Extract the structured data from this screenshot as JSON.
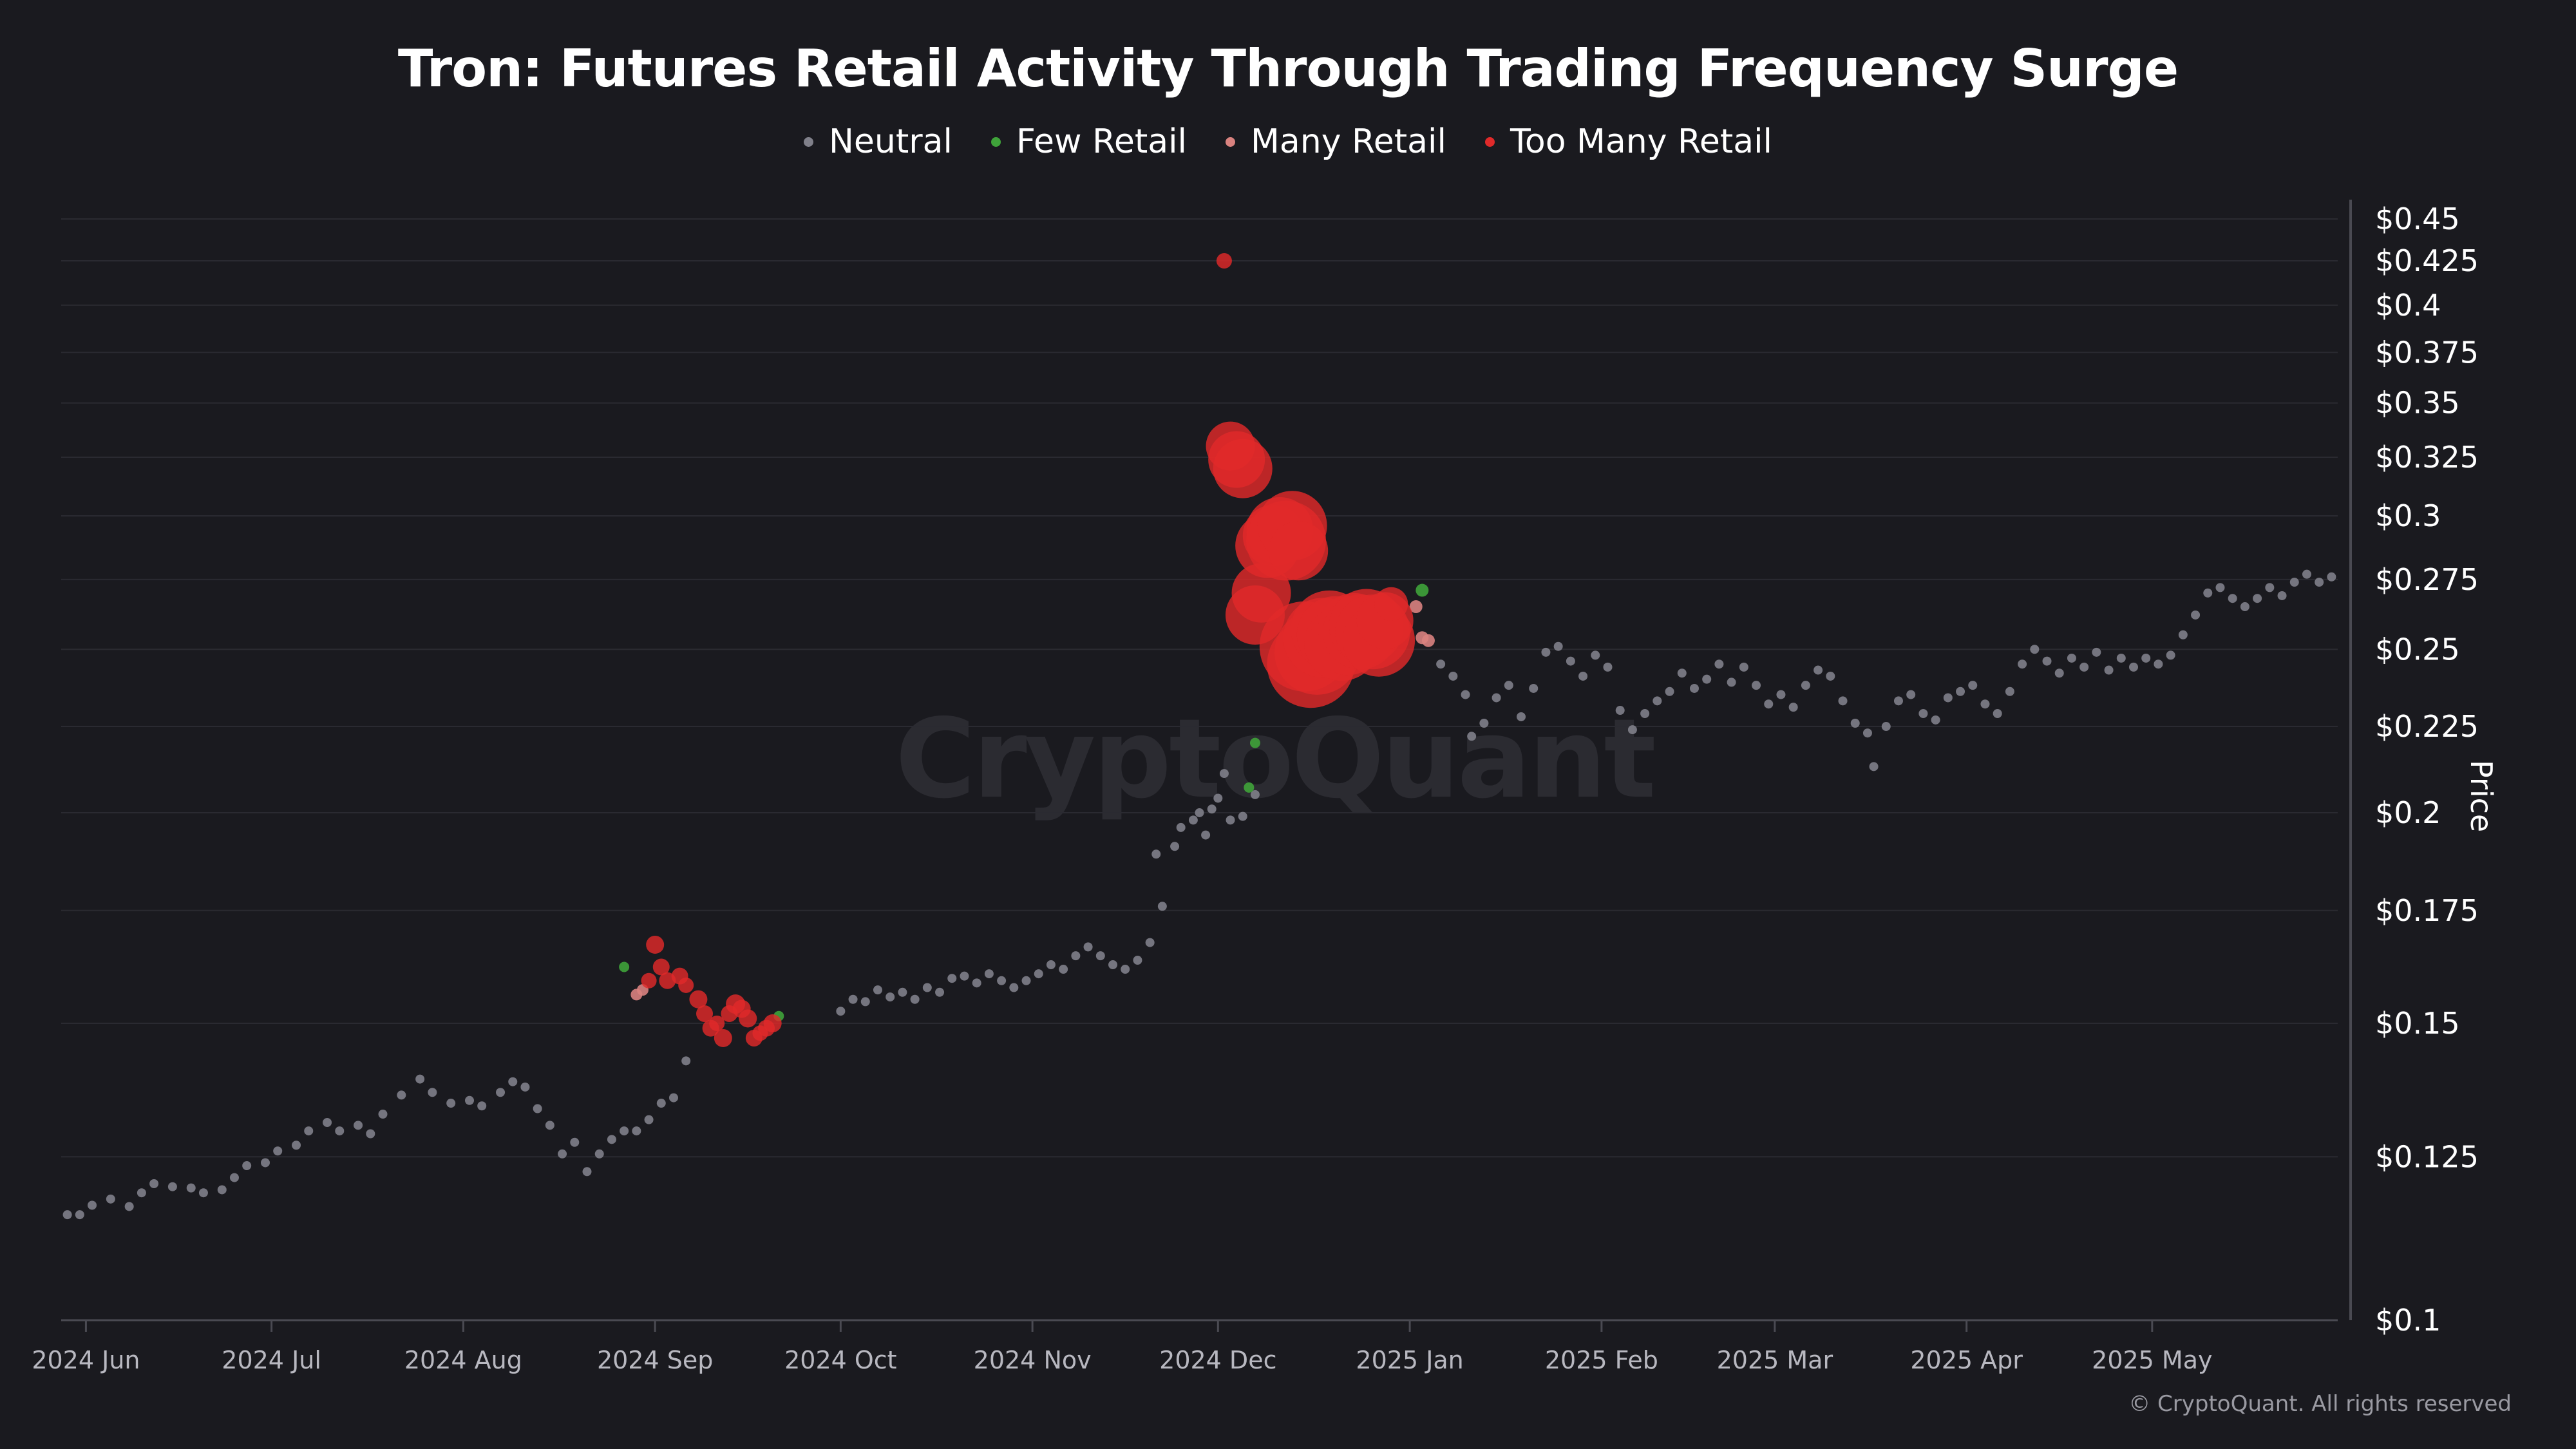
{
  "title": "Tron: Futures Retail Activity Through Trading Frequency Surge",
  "legend": [
    {
      "label": "Neutral",
      "color": "#80808a"
    },
    {
      "label": "Few Retail",
      "color": "#3fa33a"
    },
    {
      "label": "Many Retail",
      "color": "#d9827f"
    },
    {
      "label": "Too Many Retail",
      "color": "#e02a2a"
    }
  ],
  "watermark": "CryptoQuant",
  "copyright": "© CryptoQuant. All rights reserved",
  "chart_data": {
    "type": "scatter",
    "title": "Tron: Futures Retail Activity Through Trading Frequency Surge",
    "xlabel": "",
    "ylabel": "Price",
    "y_scale": "log",
    "ylim": [
      0.1,
      0.45
    ],
    "xlim": [
      "2024-05-28",
      "2025-05-31"
    ],
    "y_ticks": [
      {
        "value": 0.1,
        "label": "$0.1"
      },
      {
        "value": 0.125,
        "label": "$0.125"
      },
      {
        "value": 0.15,
        "label": "$0.15"
      },
      {
        "value": 0.175,
        "label": "$0.175"
      },
      {
        "value": 0.2,
        "label": "$0.2"
      },
      {
        "value": 0.225,
        "label": "$0.225"
      },
      {
        "value": 0.25,
        "label": "$0.25"
      },
      {
        "value": 0.275,
        "label": "$0.275"
      },
      {
        "value": 0.3,
        "label": "$0.3"
      },
      {
        "value": 0.325,
        "label": "$0.325"
      },
      {
        "value": 0.35,
        "label": "$0.35"
      },
      {
        "value": 0.375,
        "label": "$0.375"
      },
      {
        "value": 0.4,
        "label": "$0.4"
      },
      {
        "value": 0.425,
        "label": "$0.425"
      },
      {
        "value": 0.45,
        "label": "$0.45"
      }
    ],
    "x_ticks": [
      {
        "date": "2024-06-01",
        "label": "2024 Jun"
      },
      {
        "date": "2024-07-01",
        "label": "2024 Jul"
      },
      {
        "date": "2024-08-01",
        "label": "2024 Aug"
      },
      {
        "date": "2024-09-01",
        "label": "2024 Sep"
      },
      {
        "date": "2024-10-01",
        "label": "2024 Oct"
      },
      {
        "date": "2024-11-01",
        "label": "2024 Nov"
      },
      {
        "date": "2024-12-01",
        "label": "2024 Dec"
      },
      {
        "date": "2025-01-01",
        "label": "2025 Jan"
      },
      {
        "date": "2025-02-01",
        "label": "2025 Feb"
      },
      {
        "date": "2025-03-01",
        "label": "2025 Mar"
      },
      {
        "date": "2025-04-01",
        "label": "2025 Apr"
      },
      {
        "date": "2025-05-01",
        "label": "2025 May"
      }
    ],
    "grid": true,
    "legend_position": "top-center",
    "series": [
      {
        "name": "Neutral",
        "color": "#80808a",
        "points": [
          [
            "2024-05-29",
            0.1155
          ],
          [
            "2024-05-31",
            0.1155
          ],
          [
            "2024-06-02",
            0.117
          ],
          [
            "2024-06-05",
            0.118
          ],
          [
            "2024-06-08",
            0.1168
          ],
          [
            "2024-06-10",
            0.119
          ],
          [
            "2024-06-12",
            0.1205
          ],
          [
            "2024-06-15",
            0.12
          ],
          [
            "2024-06-18",
            0.1198
          ],
          [
            "2024-06-20",
            0.119
          ],
          [
            "2024-06-23",
            0.1195
          ],
          [
            "2024-06-25",
            0.1215
          ],
          [
            "2024-06-27",
            0.1235
          ],
          [
            "2024-06-30",
            0.124
          ],
          [
            "2024-07-02",
            0.126
          ],
          [
            "2024-07-05",
            0.127
          ],
          [
            "2024-07-07",
            0.1295
          ],
          [
            "2024-07-10",
            0.131
          ],
          [
            "2024-07-12",
            0.1295
          ],
          [
            "2024-07-15",
            0.1305
          ],
          [
            "2024-07-17",
            0.129
          ],
          [
            "2024-07-19",
            0.1325
          ],
          [
            "2024-07-22",
            0.136
          ],
          [
            "2024-07-25",
            0.139
          ],
          [
            "2024-07-27",
            0.1365
          ],
          [
            "2024-07-30",
            0.1345
          ],
          [
            "2024-08-02",
            0.135
          ],
          [
            "2024-08-04",
            0.134
          ],
          [
            "2024-08-07",
            0.1365
          ],
          [
            "2024-08-09",
            0.1385
          ],
          [
            "2024-08-11",
            0.1375
          ],
          [
            "2024-08-13",
            0.1335
          ],
          [
            "2024-08-15",
            0.1305
          ],
          [
            "2024-08-17",
            0.1255
          ],
          [
            "2024-08-19",
            0.1275
          ],
          [
            "2024-08-21",
            0.1225
          ],
          [
            "2024-08-23",
            0.1255
          ],
          [
            "2024-08-25",
            0.128
          ],
          [
            "2024-08-27",
            0.1295
          ],
          [
            "2024-08-29",
            0.1295
          ],
          [
            "2024-08-31",
            0.1315
          ],
          [
            "2024-09-02",
            0.1345
          ],
          [
            "2024-09-04",
            0.1355
          ],
          [
            "2024-09-06",
            0.1425
          ],
          [
            "2024-10-01",
            0.1525
          ],
          [
            "2024-10-03",
            0.155
          ],
          [
            "2024-10-05",
            0.1545
          ],
          [
            "2024-10-07",
            0.157
          ],
          [
            "2024-10-09",
            0.1555
          ],
          [
            "2024-10-11",
            0.1565
          ],
          [
            "2024-10-13",
            0.155
          ],
          [
            "2024-10-15",
            0.1575
          ],
          [
            "2024-10-17",
            0.1565
          ],
          [
            "2024-10-19",
            0.1595
          ],
          [
            "2024-10-21",
            0.16
          ],
          [
            "2024-10-23",
            0.1585
          ],
          [
            "2024-10-25",
            0.1605
          ],
          [
            "2024-10-27",
            0.159
          ],
          [
            "2024-10-29",
            0.1575
          ],
          [
            "2024-10-31",
            0.159
          ],
          [
            "2024-11-02",
            0.1605
          ],
          [
            "2024-11-04",
            0.1625
          ],
          [
            "2024-11-06",
            0.1615
          ],
          [
            "2024-11-08",
            0.1645
          ],
          [
            "2024-11-10",
            0.1665
          ],
          [
            "2024-11-12",
            0.1645
          ],
          [
            "2024-11-14",
            0.1625
          ],
          [
            "2024-11-16",
            0.1615
          ],
          [
            "2024-11-18",
            0.1635
          ],
          [
            "2024-11-20",
            0.1675
          ],
          [
            "2024-11-21",
            0.189
          ],
          [
            "2024-11-22",
            0.176
          ],
          [
            "2024-11-24",
            0.191
          ],
          [
            "2024-11-25",
            0.196
          ],
          [
            "2024-11-27",
            0.198
          ],
          [
            "2024-11-28",
            0.2
          ],
          [
            "2024-11-29",
            0.194
          ],
          [
            "2024-11-30",
            0.201
          ],
          [
            "2024-12-01",
            0.204
          ],
          [
            "2024-12-02",
            0.211
          ],
          [
            "2024-12-03",
            0.198
          ],
          [
            "2024-12-05",
            0.199
          ],
          [
            "2024-12-07",
            0.205
          ],
          [
            "2025-01-06",
            0.245
          ],
          [
            "2025-01-08",
            0.241
          ],
          [
            "2025-01-10",
            0.235
          ],
          [
            "2025-01-11",
            0.222
          ],
          [
            "2025-01-13",
            0.226
          ],
          [
            "2025-01-15",
            0.234
          ],
          [
            "2025-01-17",
            0.238
          ],
          [
            "2025-01-19",
            0.228
          ],
          [
            "2025-01-21",
            0.237
          ],
          [
            "2025-01-23",
            0.249
          ],
          [
            "2025-01-25",
            0.251
          ],
          [
            "2025-01-27",
            0.246
          ],
          [
            "2025-01-29",
            0.241
          ],
          [
            "2025-01-31",
            0.248
          ],
          [
            "2025-02-02",
            0.244
          ],
          [
            "2025-02-04",
            0.23
          ],
          [
            "2025-02-06",
            0.224
          ],
          [
            "2025-02-08",
            0.229
          ],
          [
            "2025-02-10",
            0.233
          ],
          [
            "2025-02-12",
            0.236
          ],
          [
            "2025-02-14",
            0.242
          ],
          [
            "2025-02-16",
            0.237
          ],
          [
            "2025-02-18",
            0.24
          ],
          [
            "2025-02-20",
            0.245
          ],
          [
            "2025-02-22",
            0.239
          ],
          [
            "2025-02-24",
            0.244
          ],
          [
            "2025-02-26",
            0.238
          ],
          [
            "2025-02-28",
            0.232
          ],
          [
            "2025-03-02",
            0.235
          ],
          [
            "2025-03-04",
            0.231
          ],
          [
            "2025-03-06",
            0.238
          ],
          [
            "2025-03-08",
            0.243
          ],
          [
            "2025-03-10",
            0.241
          ],
          [
            "2025-03-12",
            0.233
          ],
          [
            "2025-03-14",
            0.226
          ],
          [
            "2025-03-16",
            0.223
          ],
          [
            "2025-03-17",
            0.213
          ],
          [
            "2025-03-19",
            0.225
          ],
          [
            "2025-03-21",
            0.233
          ],
          [
            "2025-03-23",
            0.235
          ],
          [
            "2025-03-25",
            0.229
          ],
          [
            "2025-03-27",
            0.227
          ],
          [
            "2025-03-29",
            0.234
          ],
          [
            "2025-03-31",
            0.236
          ],
          [
            "2025-04-02",
            0.238
          ],
          [
            "2025-04-04",
            0.232
          ],
          [
            "2025-04-06",
            0.229
          ],
          [
            "2025-04-08",
            0.236
          ],
          [
            "2025-04-10",
            0.245
          ],
          [
            "2025-04-12",
            0.25
          ],
          [
            "2025-04-14",
            0.246
          ],
          [
            "2025-04-16",
            0.242
          ],
          [
            "2025-04-18",
            0.247
          ],
          [
            "2025-04-20",
            0.244
          ],
          [
            "2025-04-22",
            0.249
          ],
          [
            "2025-04-24",
            0.243
          ],
          [
            "2025-04-26",
            0.247
          ],
          [
            "2025-04-28",
            0.244
          ],
          [
            "2025-04-30",
            0.247
          ],
          [
            "2025-05-02",
            0.245
          ],
          [
            "2025-05-04",
            0.248
          ],
          [
            "2025-05-06",
            0.255
          ],
          [
            "2025-05-08",
            0.262
          ],
          [
            "2025-05-10",
            0.27
          ],
          [
            "2025-05-12",
            0.272
          ],
          [
            "2025-05-14",
            0.268
          ],
          [
            "2025-05-16",
            0.265
          ],
          [
            "2025-05-18",
            0.268
          ],
          [
            "2025-05-20",
            0.272
          ],
          [
            "2025-05-22",
            0.269
          ],
          [
            "2025-05-24",
            0.274
          ],
          [
            "2025-05-26",
            0.277
          ],
          [
            "2025-05-28",
            0.274
          ],
          [
            "2025-05-30",
            0.276
          ]
        ]
      },
      {
        "name": "Few Retail",
        "color": "#3fa33a",
        "points": [
          [
            "2024-08-27",
            0.162
          ],
          [
            "2024-09-21",
            0.1515
          ],
          [
            "2024-12-06",
            0.207
          ],
          [
            "2024-12-07",
            0.22
          ],
          [
            "2025-01-03",
            0.271
          ]
        ]
      },
      {
        "name": "Many Retail",
        "color": "#d9827f",
        "points": [
          [
            "2024-08-29",
            0.156
          ],
          [
            "2024-08-30",
            0.157
          ],
          [
            "2025-01-02",
            0.265
          ],
          [
            "2025-01-03",
            0.254
          ],
          [
            "2025-01-04",
            0.253
          ]
        ]
      },
      {
        "name": "Too Many Retail",
        "color": "#e02a2a",
        "points": [
          [
            "2024-08-31",
            0.159
          ],
          [
            "2024-09-01",
            0.167
          ],
          [
            "2024-09-02",
            0.162
          ],
          [
            "2024-09-03",
            0.159
          ],
          [
            "2024-09-05",
            0.16
          ],
          [
            "2024-09-06",
            0.158
          ],
          [
            "2024-09-08",
            0.155
          ],
          [
            "2024-09-09",
            0.152
          ],
          [
            "2024-09-10",
            0.149
          ],
          [
            "2024-09-11",
            0.15
          ],
          [
            "2024-09-12",
            0.147
          ],
          [
            "2024-09-13",
            0.152
          ],
          [
            "2024-09-14",
            0.154
          ],
          [
            "2024-09-15",
            0.153
          ],
          [
            "2024-09-16",
            0.151
          ],
          [
            "2024-09-17",
            0.147
          ],
          [
            "2024-09-18",
            0.148
          ],
          [
            "2024-09-19",
            0.149
          ],
          [
            "2024-09-20",
            0.15
          ],
          [
            "2024-12-02",
            0.425
          ],
          [
            "2024-12-03",
            0.33
          ],
          [
            "2024-12-04",
            0.324
          ],
          [
            "2024-12-05",
            0.32
          ],
          [
            "2024-12-07",
            0.262
          ],
          [
            "2024-12-08",
            0.27
          ],
          [
            "2024-12-09",
            0.288
          ],
          [
            "2024-12-10",
            0.292
          ],
          [
            "2024-12-11",
            0.294
          ],
          [
            "2024-12-12",
            0.29
          ],
          [
            "2024-12-13",
            0.296
          ],
          [
            "2024-12-14",
            0.286
          ],
          [
            "2024-12-15",
            0.251
          ],
          [
            "2024-12-16",
            0.245
          ],
          [
            "2024-12-17",
            0.249
          ],
          [
            "2024-12-18",
            0.254
          ],
          [
            "2024-12-19",
            0.257
          ],
          [
            "2024-12-20",
            0.255
          ],
          [
            "2024-12-21",
            0.252
          ],
          [
            "2024-12-22",
            0.254
          ],
          [
            "2024-12-23",
            0.257
          ],
          [
            "2024-12-24",
            0.256
          ],
          [
            "2024-12-25",
            0.258
          ],
          [
            "2024-12-26",
            0.256
          ],
          [
            "2024-12-27",
            0.253
          ],
          [
            "2024-12-28",
            0.26
          ],
          [
            "2024-12-29",
            0.266
          ]
        ]
      }
    ],
    "bubble_sizes_note": "marker size reflects activity intensity",
    "bubble_sizes": {
      "Too Many Retail": [
        12,
        14,
        13,
        13,
        13,
        12,
        14,
        13,
        13,
        12,
        14,
        13,
        15,
        14,
        14,
        13,
        12,
        13,
        14,
        12,
        38,
        44,
        46,
        46,
        46,
        50,
        48,
        52,
        62,
        54,
        46,
        70,
        68,
        66,
        62,
        60,
        60,
        58,
        58,
        56,
        58,
        58,
        58,
        56,
        44,
        26
      ],
      "Many Retail": [
        9,
        9,
        10,
        10,
        10
      ],
      "Few Retail": [
        8,
        8,
        8,
        8,
        10
      ],
      "Neutral": 7
    }
  }
}
